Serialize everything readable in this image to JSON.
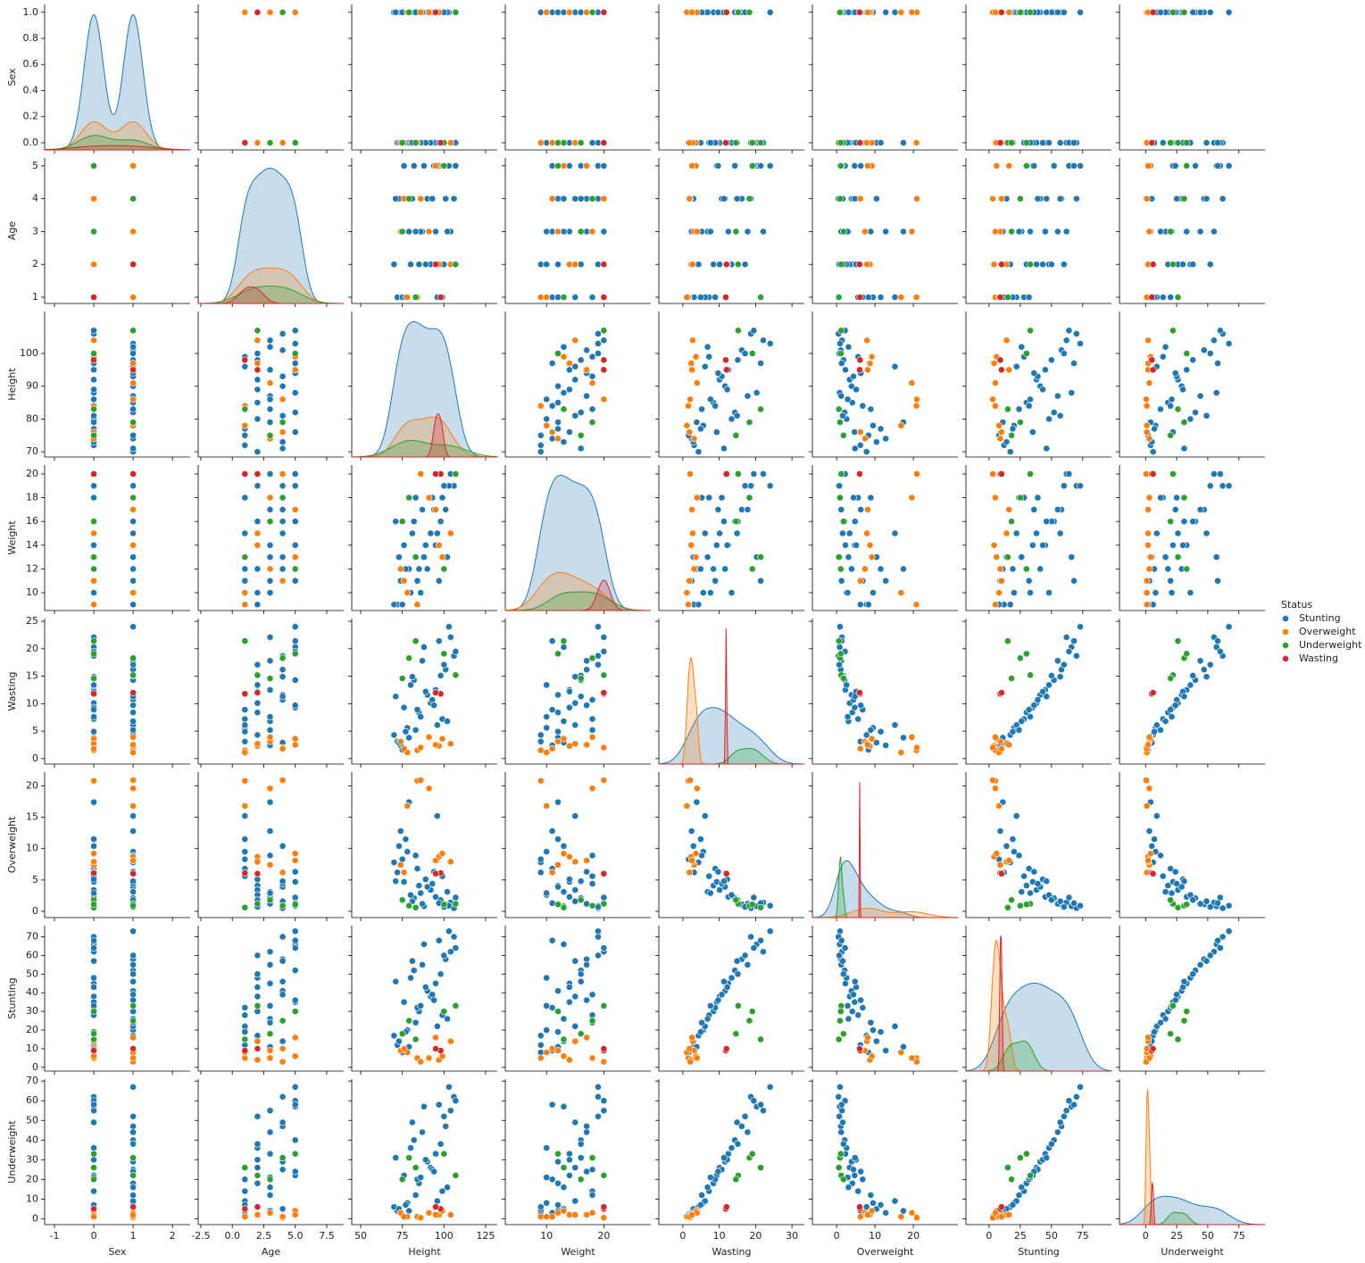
{
  "chart_data": {
    "type": "pairplot",
    "legend_title": "Status",
    "legend": "right",
    "variables": [
      {
        "name": "Sex",
        "xlim": [
          -1.25,
          2.45
        ],
        "xticks": [
          -1,
          0,
          1,
          2
        ],
        "ylim": [
          -0.055,
          1.06
        ],
        "yticks": [
          {
            "value": 0,
            "label": "0.0"
          },
          0.2,
          0.4,
          0.6,
          0.8,
          {
            "value": 1,
            "label": "1.0"
          }
        ]
      },
      {
        "name": "Age",
        "xlim": [
          -2.71,
          8.85
        ],
        "xticks": [
          -2.5,
          {
            "value": 0,
            "label": "0.0"
          },
          2.5,
          {
            "value": 5,
            "label": "5.0"
          },
          7.5
        ],
        "ylim": [
          0.81,
          5.24
        ],
        "yticks": [
          1,
          2,
          3,
          4,
          5
        ]
      },
      {
        "name": "Height",
        "xlim": [
          44.6,
          132
        ],
        "xticks": [
          50,
          75,
          100,
          125
        ],
        "ylim": [
          68.4,
          112.8
        ],
        "yticks": [
          70,
          80,
          90,
          100
        ]
      },
      {
        "name": "Weight",
        "xlim": [
          2.8,
          28.2
        ],
        "xticks": [
          10,
          20
        ],
        "ylim": [
          8.5,
          20.75
        ],
        "yticks": [
          10,
          12,
          14,
          16,
          18,
          20
        ]
      },
      {
        "name": "Wasting",
        "xlim": [
          -6.6,
          33.4
        ],
        "xticks": [
          0,
          10,
          20,
          30
        ],
        "ylim": [
          -1,
          25.5
        ],
        "yticks": [
          0,
          5,
          10,
          15,
          20,
          25
        ]
      },
      {
        "name": "Overweight",
        "xlim": [
          -6.3,
          31.6
        ],
        "xticks": [
          0,
          10,
          20
        ],
        "ylim": [
          -1,
          22.2
        ],
        "yticks": [
          0,
          5,
          10,
          15,
          20
        ]
      },
      {
        "name": "Stunting",
        "xlim": [
          -18.5,
          98
        ],
        "xticks": [
          0,
          25,
          50,
          75
        ],
        "ylim": [
          -2,
          76
        ],
        "yticks": [
          0,
          10,
          20,
          30,
          40,
          50,
          60,
          70
        ]
      },
      {
        "name": "Underweight",
        "xlim": [
          -21,
          96
        ],
        "xticks": [
          0,
          25,
          50,
          75
        ],
        "ylim": [
          -3,
          71
        ],
        "yticks": [
          0,
          10,
          20,
          30,
          40,
          50,
          60,
          70
        ]
      }
    ],
    "series": [
      {
        "name": "Stunting",
        "color": "#1f77b4",
        "values": [
          [
            0,
            1,
            72,
            9,
            3.1,
            6.2,
            12,
            4
          ],
          [
            1,
            2,
            85,
            12,
            8.4,
            4.1,
            30,
            18
          ],
          [
            0,
            3,
            95,
            14,
            12.5,
            2.3,
            45,
            33
          ],
          [
            1,
            4,
            101,
            17,
            16.2,
            1.1,
            58,
            47
          ],
          [
            0,
            5,
            88,
            13,
            20.3,
            0.8,
            66,
            57
          ],
          [
            1,
            1,
            78,
            10,
            5.6,
            9.5,
            20,
            8
          ],
          [
            0,
            2,
            92,
            15,
            10.1,
            3.4,
            38,
            26
          ],
          [
            1,
            3,
            74,
            11,
            2.4,
            12.8,
            9,
            3
          ],
          [
            0,
            4,
            106,
            19,
            18.7,
            0.5,
            70,
            62
          ],
          [
            1,
            5,
            82,
            16,
            14.3,
            2.1,
            52,
            40
          ],
          [
            0,
            1,
            99,
            18,
            7.2,
            5.6,
            28,
            14
          ],
          [
            1,
            2,
            70,
            9,
            4.3,
            7.8,
            17,
            6
          ],
          [
            0,
            3,
            104,
            20,
            22.1,
            1.4,
            62,
            55
          ],
          [
            1,
            4,
            90,
            12,
            11.6,
            3.9,
            41,
            29
          ],
          [
            0,
            5,
            76,
            14,
            9.3,
            4.7,
            35,
            22
          ],
          [
            1,
            1,
            96,
            15,
            6.1,
            15.2,
            22,
            9
          ],
          [
            0,
            2,
            80,
            10,
            13.4,
            2.6,
            48,
            36
          ],
          [
            1,
            3,
            87,
            17,
            17.8,
            1.2,
            55,
            44
          ],
          [
            0,
            4,
            73,
            13,
            2.9,
            10.4,
            14,
            5
          ],
          [
            1,
            5,
            103,
            19,
            24,
            0.9,
            73,
            67
          ],
          [
            0,
            1,
            84,
            11,
            8.9,
            6.8,
            32,
            20
          ],
          [
            1,
            2,
            98,
            16,
            15.1,
            1.8,
            50,
            38
          ],
          [
            0,
            3,
            79,
            12,
            3.8,
            17.4,
            11,
            4
          ],
          [
            1,
            4,
            93,
            18,
            10.7,
            4.4,
            39,
            25
          ],
          [
            0,
            5,
            107,
            20,
            19.5,
            2.2,
            64,
            60
          ],
          [
            1,
            1,
            75,
            9,
            1.6,
            8.3,
            8,
            2
          ],
          [
            0,
            2,
            89,
            14,
            12.2,
            5.1,
            43,
            30
          ],
          [
            1,
            3,
            102,
            13,
            6.8,
            3.1,
            26,
            16
          ],
          [
            0,
            4,
            81,
            15,
            14.9,
            1.6,
            57,
            49
          ],
          [
            1,
            5,
            94,
            17,
            9.7,
            6.3,
            36,
            24
          ],
          [
            0,
            1,
            77,
            12,
            4.9,
            11.5,
            19,
            7
          ],
          [
            1,
            2,
            100,
            19,
            17.1,
            0.7,
            60,
            52
          ],
          [
            0,
            3,
            86,
            10,
            7.6,
            2.9,
            33,
            21
          ],
          [
            1,
            4,
            71,
            16,
            11.3,
            4.8,
            46,
            31
          ],
          [
            0,
            5,
            97,
            11,
            21.4,
            1.3,
            68,
            58
          ],
          [
            1,
            3,
            83,
            18,
            5.2,
            8.9,
            24,
            12
          ]
        ]
      },
      {
        "name": "Overweight",
        "color": "#ff7f0e",
        "values": [
          [
            0,
            1,
            84,
            9,
            1.5,
            20.8,
            5,
            1
          ],
          [
            1,
            2,
            97,
            14,
            2.3,
            8.7,
            4,
            2
          ],
          [
            0,
            3,
            74,
            12,
            3.1,
            7.4,
            9,
            3
          ],
          [
            1,
            4,
            86,
            20,
            2.0,
            20.9,
            3,
            0.5
          ],
          [
            0,
            5,
            99,
            13,
            3.6,
            9.2,
            6,
            4
          ],
          [
            1,
            1,
            78,
            10,
            1.1,
            16.8,
            8,
            1
          ],
          [
            0,
            2,
            104,
            15,
            2.7,
            7.9,
            14,
            2
          ],
          [
            1,
            3,
            91,
            18,
            3.9,
            19.6,
            5,
            3
          ],
          [
            0,
            4,
            76,
            11,
            1.8,
            6.2,
            10,
            1
          ],
          [
            1,
            5,
            95,
            17,
            2.5,
            8.1,
            16,
            2
          ]
        ]
      },
      {
        "name": "Underweight",
        "color": "#2ca02c",
        "values": [
          [
            0,
            1,
            83,
            13,
            21.4,
            0.6,
            15,
            26
          ],
          [
            1,
            2,
            107,
            20,
            15.2,
            1.2,
            33,
            22
          ],
          [
            0,
            3,
            75,
            16,
            14.6,
            1.8,
            18,
            20
          ],
          [
            1,
            4,
            79,
            18,
            18.3,
            0.9,
            25,
            31
          ],
          [
            0,
            5,
            100,
            12,
            19.1,
            1.1,
            30,
            33
          ]
        ]
      },
      {
        "name": "Wasting",
        "color": "#d62728",
        "values": [
          [
            0,
            1,
            98,
            20,
            11.8,
            6.1,
            9,
            5
          ],
          [
            1,
            2,
            95,
            20,
            12.0,
            6.0,
            10,
            6
          ]
        ]
      }
    ]
  }
}
